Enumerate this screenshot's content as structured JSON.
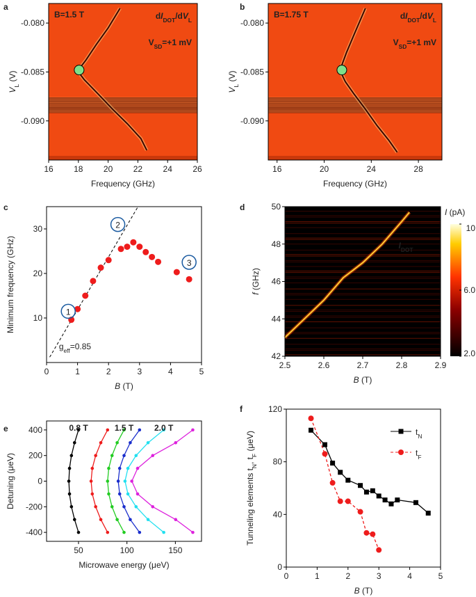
{
  "chart_data": [
    {
      "panel": "a",
      "type": "heatmap",
      "background": "#f04a12",
      "label": "B=1.5 T",
      "quantity": [
        {
          "text": "d"
        },
        {
          "text": "I",
          "italic": true
        },
        {
          "text": "DOT",
          "sub": true
        },
        {
          "text": "/d"
        },
        {
          "text": "V",
          "italic": true
        },
        {
          "text": "L",
          "sub": true
        }
      ],
      "condition": [
        {
          "text": "V"
        },
        {
          "text": "SD",
          "sub": true
        },
        {
          "text": "=+1 mV"
        }
      ],
      "xlabel": [
        {
          "text": "Frequency (GHz)"
        }
      ],
      "ylabel": [
        {
          "text": "V",
          "italic": true
        },
        {
          "text": "L",
          "sub": true
        },
        {
          "text": " (V)"
        }
      ],
      "xlim": [
        16,
        26
      ],
      "xticks": [
        16,
        18,
        20,
        22,
        24,
        26
      ],
      "ylim": [
        -0.094,
        -0.078
      ],
      "yticks": [
        {
          "value": -0.08,
          "label": "-0.080"
        },
        {
          "value": -0.085,
          "label": "-0.085"
        },
        {
          "value": -0.09,
          "label": "-0.090"
        }
      ],
      "trace": {
        "color": "#3a0800",
        "x": [
          20.8,
          20,
          19.2,
          18.5,
          18.1,
          18,
          18.4,
          19.3,
          20.3,
          21.3,
          22.2,
          22.6
        ],
        "y": [
          -0.0785,
          -0.0805,
          -0.0822,
          -0.0838,
          -0.0846,
          -0.085,
          -0.0858,
          -0.0872,
          -0.0888,
          -0.0903,
          -0.0918,
          -0.093
        ]
      },
      "marker": {
        "x": 18.05,
        "y": -0.0848,
        "color": "#7ee08a"
      }
    },
    {
      "panel": "b",
      "type": "heatmap",
      "background": "#f04a12",
      "label": "B=1.75 T",
      "quantity": [
        {
          "text": "d"
        },
        {
          "text": "I",
          "italic": true
        },
        {
          "text": "DOT",
          "sub": true
        },
        {
          "text": "/d"
        },
        {
          "text": "V",
          "italic": true
        },
        {
          "text": "L",
          "sub": true
        }
      ],
      "condition": [
        {
          "text": "V"
        },
        {
          "text": "SD",
          "sub": true
        },
        {
          "text": "=+1 mV"
        }
      ],
      "xlabel": [
        {
          "text": "Frequency (GHz)"
        }
      ],
      "ylabel": [
        {
          "text": "V",
          "italic": true
        },
        {
          "text": "L",
          "sub": true
        },
        {
          "text": " (V)"
        }
      ],
      "xlim": [
        15.25,
        30
      ],
      "xticks": [
        16,
        20,
        24,
        28
      ],
      "ylim": [
        -0.094,
        -0.078
      ],
      "yticks": [
        {
          "value": -0.08,
          "label": "-0.080"
        },
        {
          "value": -0.085,
          "label": "-0.085"
        },
        {
          "value": -0.09,
          "label": "-0.090"
        }
      ],
      "trace": {
        "color": "#3a0800",
        "x": [
          23.5,
          22.6,
          21.9,
          21.5,
          21.4,
          21.8,
          22.5,
          23.5,
          24.5,
          25.5,
          26.2
        ],
        "y": [
          -0.0785,
          -0.081,
          -0.083,
          -0.0843,
          -0.085,
          -0.086,
          -0.0872,
          -0.0888,
          -0.0905,
          -0.092,
          -0.0932
        ]
      },
      "marker": {
        "x": 21.5,
        "y": -0.0848,
        "color": "#7ee08a"
      }
    },
    {
      "panel": "c",
      "type": "scatter",
      "color": "#ee1c1c",
      "xlabel": [
        {
          "text": "B",
          "italic": true
        },
        {
          "text": " (T)"
        }
      ],
      "ylabel": [
        {
          "text": "Minimum frequency (GHz)"
        }
      ],
      "xlim": [
        0,
        5
      ],
      "xticks": [
        0,
        1,
        2,
        3,
        4,
        5
      ],
      "ylim": [
        0,
        35
      ],
      "yticks": [
        10,
        20,
        30
      ],
      "x": [
        0.8,
        1.0,
        1.25,
        1.5,
        1.75,
        2.0,
        2.4,
        2.6,
        2.8,
        3.0,
        3.2,
        3.4,
        3.6,
        4.2,
        4.6
      ],
      "y": [
        9.6,
        12,
        15,
        18.3,
        21.3,
        23,
        25.5,
        26,
        27,
        26,
        24.8,
        23.7,
        22.6,
        20.3,
        18.7
      ],
      "fit": {
        "x": [
          0.1,
          2.95
        ],
        "y": [
          1.2,
          35
        ]
      },
      "note": [
        {
          "text": "g"
        },
        {
          "text": "eff",
          "sub": true
        },
        {
          "text": "=0.85"
        }
      ],
      "circled": [
        "1",
        "2",
        "3"
      ]
    },
    {
      "panel": "d",
      "type": "heatmap",
      "background": "#000000",
      "quantity": [
        {
          "text": "I",
          "italic": true
        },
        {
          "text": "DOT",
          "sub": true
        }
      ],
      "xlabel": [
        {
          "text": "B",
          "italic": true
        },
        {
          "text": " (T)"
        }
      ],
      "ylabel": [
        {
          "text": "f",
          "italic": true
        },
        {
          "text": " (GHz)"
        }
      ],
      "xlim": [
        2.5,
        2.9
      ],
      "xticks": [
        2.5,
        2.6,
        2.7,
        2.8,
        2.9
      ],
      "ylim": [
        42,
        50
      ],
      "yticks": [
        42,
        44,
        46,
        48,
        50
      ],
      "trace": {
        "color": "#ffcc33",
        "x": [
          2.5,
          2.55,
          2.6,
          2.65,
          2.7,
          2.75,
          2.8,
          2.82
        ],
        "y": [
          43.0,
          44.0,
          45.0,
          46.2,
          47.0,
          48.0,
          49.2,
          49.7
        ]
      },
      "colorbar": {
        "title": [
          {
            "text": "I",
            "italic": true
          },
          {
            "text": " (pA)"
          }
        ],
        "zlim": [
          2,
          10
        ],
        "ticks": [
          {
            "value": 2,
            "label": "2.0"
          },
          {
            "value": 6,
            "label": "6.0"
          },
          10
        ]
      }
    },
    {
      "panel": "e",
      "type": "line",
      "xlabel": [
        {
          "text": "Microwave energy (μeV)"
        }
      ],
      "ylabel": [
        {
          "text": "Detuning (μeV)"
        }
      ],
      "xlim": [
        17,
        177
      ],
      "xticks": [
        50,
        100,
        150
      ],
      "ylim": [
        -470,
        470
      ],
      "yticks": [
        -400,
        -200,
        0,
        200,
        400
      ],
      "series": [
        {
          "name": "0.8 T",
          "color": "#000000",
          "y": [
            -400,
            -300,
            -200,
            -100,
            0,
            100,
            200,
            300,
            400
          ],
          "x": [
            50,
            45.9,
            42.7,
            40.7,
            40,
            40.7,
            42.7,
            45.9,
            50
          ]
        },
        {
          "color": "#ee1c1c",
          "y": [
            -400,
            -300,
            -200,
            -100,
            0,
            100,
            200,
            300,
            400
          ],
          "x": [
            80,
            73.0,
            67.7,
            64.2,
            63,
            64.2,
            67.7,
            73.0,
            80
          ]
        },
        {
          "name": "1.5 T",
          "color": "#22cc22",
          "y": [
            -400,
            -300,
            -200,
            -100,
            0,
            100,
            200,
            300,
            400
          ],
          "x": [
            97,
            89.9,
            84.6,
            81.2,
            80,
            81.2,
            84.6,
            89.9,
            97
          ]
        },
        {
          "color": "#1a2ecc",
          "y": [
            -400,
            -300,
            -200,
            -100,
            0,
            100,
            200,
            300,
            400
          ],
          "x": [
            113,
            103.4,
            97.0,
            92.5,
            91,
            92.5,
            97.0,
            103.4,
            113
          ]
        },
        {
          "name": "2.0 T",
          "color": "#22e0f0",
          "y": [
            -400,
            -300,
            -200,
            -100,
            0,
            100,
            200,
            300,
            400
          ],
          "x": [
            138,
            121.8,
            109.4,
            101.0,
            98,
            101.0,
            109.4,
            121.8,
            138
          ]
        },
        {
          "color": "#dd22dd",
          "y": [
            -400,
            -300,
            -200,
            -100,
            0,
            100,
            200,
            300,
            400
          ],
          "x": [
            168,
            150.3,
            126.6,
            111.0,
            105,
            111.0,
            126.6,
            150.3,
            168
          ]
        }
      ]
    },
    {
      "panel": "f",
      "type": "line",
      "legend": "upper right",
      "xlabel": [
        {
          "text": "B",
          "italic": true
        },
        {
          "text": " (T)"
        }
      ],
      "ylabel": [
        {
          "text": "Tunneling elements t"
        },
        {
          "text": "N",
          "sub": true
        },
        {
          "text": ", t"
        },
        {
          "text": "F",
          "sub": true
        },
        {
          "text": " (μeV)"
        }
      ],
      "xlim": [
        0,
        5
      ],
      "xticks": [
        0,
        1,
        2,
        3,
        4,
        5
      ],
      "ylim": [
        0,
        120
      ],
      "yticks": [
        0,
        40,
        80,
        120
      ],
      "series": [
        {
          "name": [
            {
              "text": "t"
            },
            {
              "text": "N",
              "sub": true
            }
          ],
          "color": "#000000",
          "marker": "square",
          "dash": false,
          "x": [
            0.8,
            1.25,
            1.5,
            1.75,
            2.0,
            2.4,
            2.6,
            2.8,
            3.0,
            3.2,
            3.4,
            3.6,
            4.2,
            4.6
          ],
          "y": [
            104,
            93,
            79,
            72,
            66,
            62,
            57,
            58,
            54,
            51,
            48,
            51,
            49,
            41
          ]
        },
        {
          "name": [
            {
              "text": "t"
            },
            {
              "text": "F",
              "sub": true
            }
          ],
          "color": "#ee1c1c",
          "marker": "circle",
          "dash": true,
          "x": [
            0.8,
            1.25,
            1.5,
            1.75,
            2.0,
            2.4,
            2.6,
            2.8,
            3.0
          ],
          "y": [
            113,
            86,
            64,
            50,
            50,
            42,
            26,
            25,
            13
          ]
        }
      ]
    }
  ]
}
